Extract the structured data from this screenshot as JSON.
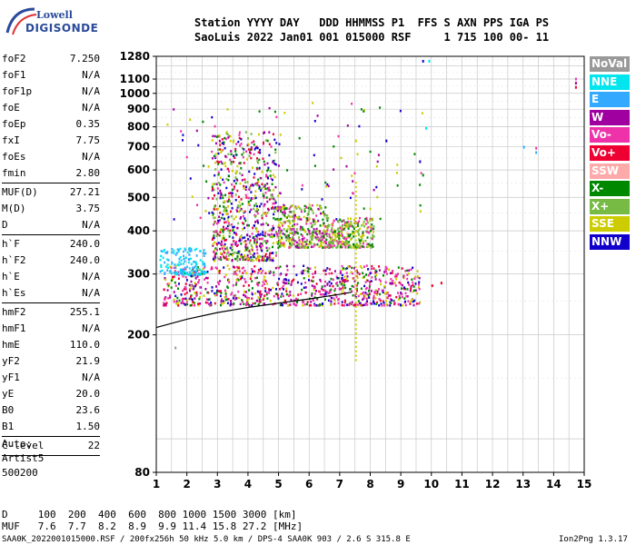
{
  "logo": {
    "line1": "Lowell",
    "line2": "DIGISONDE"
  },
  "header": {
    "line1": "Station YYYY DAY   DDD HHMMSS P1  FFS S AXN PPS IGA PS",
    "line2": "SaoLuis 2022 Jan01 001 015000 RSF     1 715 100 00- 11"
  },
  "params": [
    {
      "k": "foF2",
      "v": "7.250"
    },
    {
      "k": "foF1",
      "v": "N/A"
    },
    {
      "k": "foF1p",
      "v": "N/A"
    },
    {
      "k": "foE",
      "v": "N/A"
    },
    {
      "k": "foEp",
      "v": "0.35"
    },
    {
      "k": "fxI",
      "v": "7.75"
    },
    {
      "k": "foEs",
      "v": "N/A"
    },
    {
      "k": "fmin",
      "v": "2.80"
    },
    {
      "sep": true
    },
    {
      "k": "MUF(D)",
      "v": "27.21"
    },
    {
      "k": "M(D)",
      "v": "3.75"
    },
    {
      "k": "D",
      "v": "N/A"
    },
    {
      "sep": true
    },
    {
      "k": "h`F",
      "v": "240.0"
    },
    {
      "k": "h`F2",
      "v": "240.0"
    },
    {
      "k": "h`E",
      "v": "N/A"
    },
    {
      "k": "h`Es",
      "v": "N/A"
    },
    {
      "sep": true
    },
    {
      "k": "hmF2",
      "v": "255.1"
    },
    {
      "k": "hmF1",
      "v": "N/A"
    },
    {
      "k": "hmE",
      "v": "110.0"
    },
    {
      "k": "yF2",
      "v": "21.9"
    },
    {
      "k": "yF1",
      "v": "N/A"
    },
    {
      "k": "yE",
      "v": "20.0"
    },
    {
      "k": "B0",
      "v": "23.6"
    },
    {
      "k": "B1",
      "v": "1.50"
    },
    {
      "sep": true
    },
    {
      "k": "C-level",
      "v": "22"
    },
    {
      "sep": true
    }
  ],
  "auto": {
    "l1": "Auto:",
    "l2": "Artist5",
    "l3": "500200"
  },
  "legend": [
    {
      "label": "NoVal",
      "color": "#999999"
    },
    {
      "label": "NNE",
      "color": "#00e5ee"
    },
    {
      "label": "E",
      "color": "#33aaff"
    },
    {
      "label": "W",
      "color": "#a000a0"
    },
    {
      "label": "Vo-",
      "color": "#ee33aa"
    },
    {
      "label": "Vo+",
      "color": "#ee0033"
    },
    {
      "label": "SSW",
      "color": "#ffaaaa"
    },
    {
      "label": "X-",
      "color": "#008800"
    },
    {
      "label": "X+",
      "color": "#77bb44"
    },
    {
      "label": "SSE",
      "color": "#cccc00"
    },
    {
      "label": "NNW",
      "color": "#1100cc"
    }
  ],
  "footer": {
    "line1": "D     100  200  400  600  800 1000 1500 3000 [km]",
    "line2": "MUF   7.6  7.7  8.2  8.9  9.9 11.4 15.8 27.2 [MHz]",
    "left": "SAA0K_2022001015000.RSF / 200fx256h 50 kHz 5.0 km / DPS-4 SAA0K 903 / 2.6 S 315.8 E",
    "right": "Ion2Png 1.3.17"
  },
  "chart_data": {
    "type": "scatter",
    "xlim": [
      1,
      15
    ],
    "ylim": [
      80,
      1280
    ],
    "yscale": "log",
    "xticks": [
      1,
      2,
      3,
      4,
      5,
      6,
      7,
      8,
      9,
      10,
      11,
      12,
      13,
      14,
      15
    ],
    "yticks": [
      80,
      200,
      300,
      400,
      500,
      600,
      700,
      800,
      900,
      1000,
      1100,
      1280
    ],
    "grid": true,
    "trace": {
      "x": [
        1.0,
        2.0,
        3.0,
        4.0,
        5.0,
        6.0,
        7.0,
        7.4
      ],
      "y": [
        210,
        222,
        232,
        240,
        247,
        254,
        262,
        266
      ]
    },
    "clusters": [
      {
        "name": "low-band",
        "x": [
          1.2,
          9.6
        ],
        "y": [
          245,
          320
        ],
        "n": 900,
        "colors": [
          "#ee33aa",
          "#ee0033",
          "#a000a0",
          "#ee33aa",
          "#1100cc",
          "#cccc00",
          "#008800"
        ]
      },
      {
        "name": "cyan-low",
        "x": [
          1.1,
          2.6
        ],
        "y": [
          300,
          360
        ],
        "n": 140,
        "colors": [
          "#00e5ee",
          "#33aaff"
        ]
      },
      {
        "name": "f-layer",
        "x": [
          2.8,
          4.9
        ],
        "y": [
          330,
          780
        ],
        "n": 700,
        "colors": [
          "#ee33aa",
          "#a000a0",
          "#ee0033",
          "#cccc00",
          "#008800",
          "#1100cc",
          "#77bb44"
        ]
      },
      {
        "name": "mid",
        "x": [
          4.9,
          6.6
        ],
        "y": [
          360,
          480
        ],
        "n": 380,
        "colors": [
          "#cccc00",
          "#ee33aa",
          "#a000a0",
          "#008800",
          "#77bb44"
        ]
      },
      {
        "name": "upper",
        "x": [
          6.6,
          8.1
        ],
        "y": [
          360,
          440
        ],
        "n": 260,
        "colors": [
          "#cccc00",
          "#77bb44",
          "#ee33aa",
          "#008800"
        ]
      },
      {
        "name": "sparse",
        "x": [
          1.3,
          9.8
        ],
        "y": [
          430,
          950
        ],
        "n": 120,
        "colors": [
          "#ee33aa",
          "#008800",
          "#cccc00",
          "#a000a0",
          "#1100cc"
        ]
      }
    ],
    "points": [
      {
        "x": 9.7,
        "y": 1250,
        "c": "#1100cc"
      },
      {
        "x": 9.9,
        "y": 1250,
        "c": "#00e5ee"
      },
      {
        "x": 14.7,
        "y": 1110,
        "c": "#ee33aa"
      },
      {
        "x": 14.7,
        "y": 1080,
        "c": "#a000a0"
      },
      {
        "x": 14.7,
        "y": 1050,
        "c": "#ee0033"
      },
      {
        "x": 13.0,
        "y": 705,
        "c": "#33aaff"
      },
      {
        "x": 13.4,
        "y": 700,
        "c": "#ee33aa"
      },
      {
        "x": 13.4,
        "y": 680,
        "c": "#33aaff"
      },
      {
        "x": 9.8,
        "y": 800,
        "c": "#00e5ee"
      },
      {
        "x": 8.5,
        "y": 735,
        "c": "#1100cc"
      },
      {
        "x": 7.5,
        "y": 735,
        "c": "#cccc00"
      },
      {
        "x": 9.6,
        "y": 640,
        "c": "#1100cc"
      },
      {
        "x": 9.7,
        "y": 585,
        "c": "#008800"
      },
      {
        "x": 10.0,
        "y": 280,
        "c": "#ee0033"
      },
      {
        "x": 1.6,
        "y": 185,
        "c": "#999999"
      },
      {
        "x": 10.3,
        "y": 285,
        "c": "#ee0033"
      }
    ],
    "verticalBars": [
      {
        "x": 7.5,
        "y": [
          170,
          560
        ],
        "c": "#cccc00"
      }
    ]
  }
}
